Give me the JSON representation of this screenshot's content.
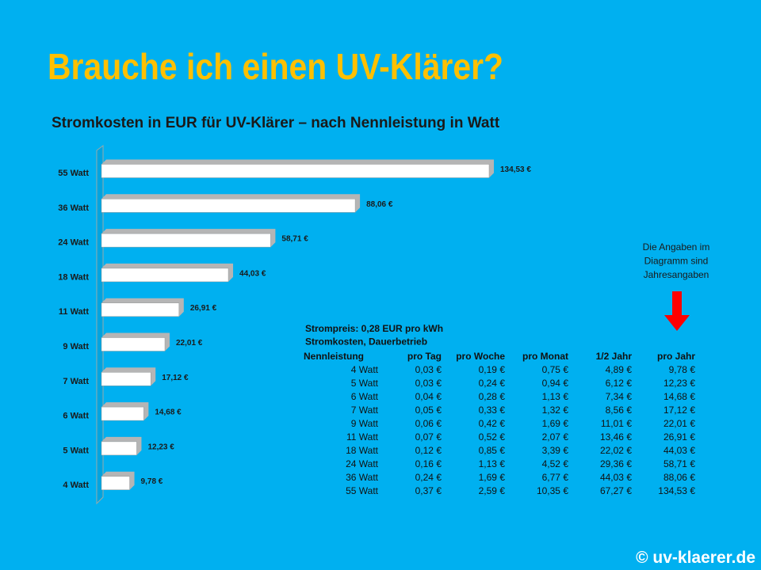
{
  "page_title": "Brauche ich einen UV-Klärer?",
  "chart_data": {
    "type": "hbar",
    "title": "Stromkosten in EUR für UV-Klärer – nach Nennleistung in Watt",
    "categories": [
      "55 Watt",
      "36 Watt",
      "24 Watt",
      "18 Watt",
      "11 Watt",
      "9 Watt",
      "7 Watt",
      "6 Watt",
      "5 Watt",
      "4 Watt"
    ],
    "values": [
      134.53,
      88.06,
      58.71,
      44.03,
      26.91,
      22.01,
      17.12,
      14.68,
      12.23,
      9.78
    ],
    "value_labels": [
      "134,53 €",
      "88,06 €",
      "58,71 €",
      "44,03 €",
      "26,91 €",
      "22,01 €",
      "17,12 €",
      "14,68 €",
      "12,23 €",
      "9,78 €"
    ],
    "color": "#ffffff"
  },
  "note": [
    "Die Angaben im",
    "Diagramm sind",
    "Jahresangaben"
  ],
  "table": {
    "intro": [
      "Strompreis: 0,28 EUR pro kWh",
      "Stromkosten, Dauerbetrieb"
    ],
    "header": [
      "Nennleistung",
      "pro Tag",
      "pro Woche",
      "pro Monat",
      "1/2 Jahr",
      "pro Jahr"
    ],
    "rows": [
      [
        "4 Watt",
        "0,03 €",
        "0,19 €",
        "0,75 €",
        "4,89 €",
        "9,78 €"
      ],
      [
        "5 Watt",
        "0,03 €",
        "0,24 €",
        "0,94 €",
        "6,12 €",
        "12,23 €"
      ],
      [
        "6 Watt",
        "0,04 €",
        "0,28 €",
        "1,13 €",
        "7,34 €",
        "14,68 €"
      ],
      [
        "7 Watt",
        "0,05 €",
        "0,33 €",
        "1,32 €",
        "8,56 €",
        "17,12 €"
      ],
      [
        "9 Watt",
        "0,06 €",
        "0,42 €",
        "1,69 €",
        "11,01 €",
        "22,01 €"
      ],
      [
        "11 Watt",
        "0,07 €",
        "0,52 €",
        "2,07 €",
        "13,46 €",
        "26,91 €"
      ],
      [
        "18 Watt",
        "0,12 €",
        "0,85 €",
        "3,39 €",
        "22,02 €",
        "44,03 €"
      ],
      [
        "24 Watt",
        "0,16 €",
        "1,13 €",
        "4,52 €",
        "29,36 €",
        "58,71 €"
      ],
      [
        "36 Watt",
        "0,24 €",
        "1,69 €",
        "6,77 €",
        "44,03 €",
        "88,06 €"
      ],
      [
        "55 Watt",
        "0,37 €",
        "2,59 €",
        "10,35 €",
        "67,27 €",
        "134,53 €"
      ]
    ]
  },
  "footer": "© uv-klaerer.de"
}
